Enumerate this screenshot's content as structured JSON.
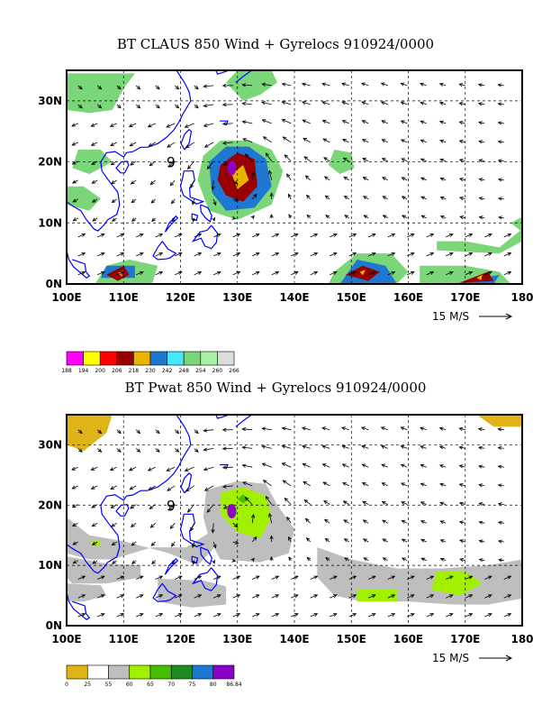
{
  "panels": [
    {
      "title": "BT CLAUS 850 Wind + Gyrelocs 910924/0000",
      "colorbar_labels": [
        "188",
        "194",
        "200",
        "206",
        "218",
        "230",
        "242",
        "248",
        "254",
        "260",
        "266"
      ],
      "colorbar_colors": [
        "#ff00ff",
        "#ffff00",
        "#ff0000",
        "#990000",
        "#e8b400",
        "#1e78d2",
        "#46e6ff",
        "#7ad678",
        "#a8f0a8",
        "#dcdcdc"
      ]
    },
    {
      "title": "BT Pwat 850 Wind + Gyrelocs 910924/0000",
      "colorbar_labels": [
        "0",
        "25",
        "55",
        "60",
        "65",
        "70",
        "75",
        "80",
        "86.84"
      ],
      "colorbar_colors": [
        "#e0b418",
        "#ffffff",
        "#bebebe",
        "#a0f000",
        "#46be00",
        "#1e8c1e",
        "#1e78d2",
        "#8c00c8"
      ]
    }
  ],
  "axes": {
    "x_ticks": [
      "100E",
      "110E",
      "120E",
      "130E",
      "140E",
      "150E",
      "160E",
      "170E",
      "180"
    ],
    "y_ticks": [
      "0N",
      "10N",
      "20N",
      "30N"
    ]
  },
  "reference_vector": "15 M/S",
  "storm_label": "9",
  "colors": {
    "coastline": "#0000ff",
    "gyre": "#8c00c8",
    "frame": "#000000"
  },
  "chart_data": [
    {
      "type": "heatmap",
      "title": "BT CLAUS 850 Wind + Gyrelocs 910924/0000",
      "variable": "cloud top brightness temperature (K) with 850 hPa wind vectors",
      "xlim": [
        100,
        180
      ],
      "ylim": [
        0,
        35
      ],
      "legend_bins": [
        188,
        194,
        200,
        206,
        218,
        230,
        242,
        248,
        254,
        260,
        266
      ],
      "storm_marker": {
        "label": "9",
        "lon": 129,
        "lat": 19
      }
    },
    {
      "type": "heatmap",
      "title": "BT Pwat 850 Wind + Gyrelocs 910924/0000",
      "variable": "precipitable water with 850 hPa wind vectors",
      "xlim": [
        100,
        180
      ],
      "ylim": [
        0,
        35
      ],
      "legend_bins": [
        0,
        25,
        55,
        60,
        65,
        70,
        75,
        80,
        86.84
      ],
      "storm_marker": {
        "label": "9",
        "lon": 129,
        "lat": 19
      }
    }
  ]
}
